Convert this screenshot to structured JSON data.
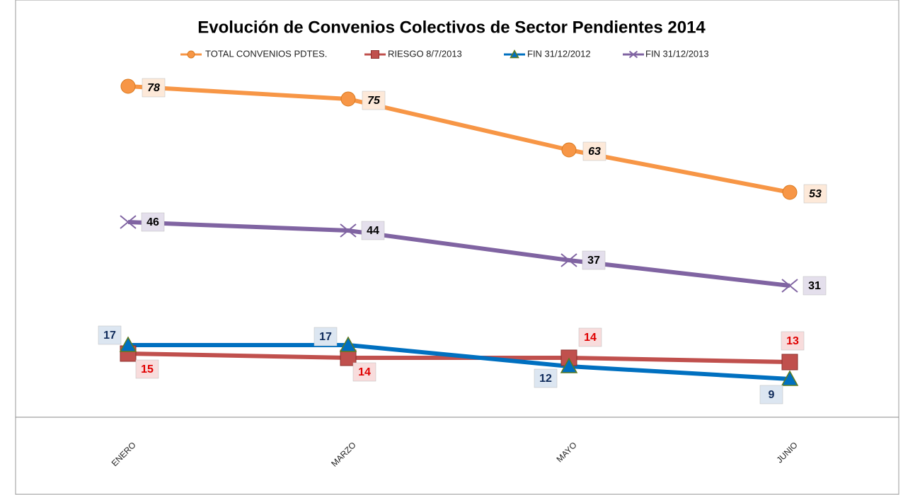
{
  "chart_data": {
    "type": "line",
    "title": "Evolución de Convenios Colectivos de Sector Pendientes 2014",
    "categories": [
      "ENERO",
      "MARZO",
      "MAYO",
      "JUNIO"
    ],
    "series": [
      {
        "name": "TOTAL CONVENIOS PDTES.",
        "color": "#f79646",
        "values": [
          78,
          75,
          63,
          53
        ]
      },
      {
        "name": "RIESGO 8/7/2013",
        "color": "#c0504d",
        "values": [
          15,
          14,
          14,
          13
        ]
      },
      {
        "name": "FIN 31/12/2012",
        "color": "#0070c0",
        "values": [
          17,
          17,
          12,
          9
        ]
      },
      {
        "name": "FIN 31/12/2013",
        "color": "#8064a2",
        "values": [
          46,
          44,
          37,
          31
        ]
      }
    ],
    "legend": "top"
  }
}
